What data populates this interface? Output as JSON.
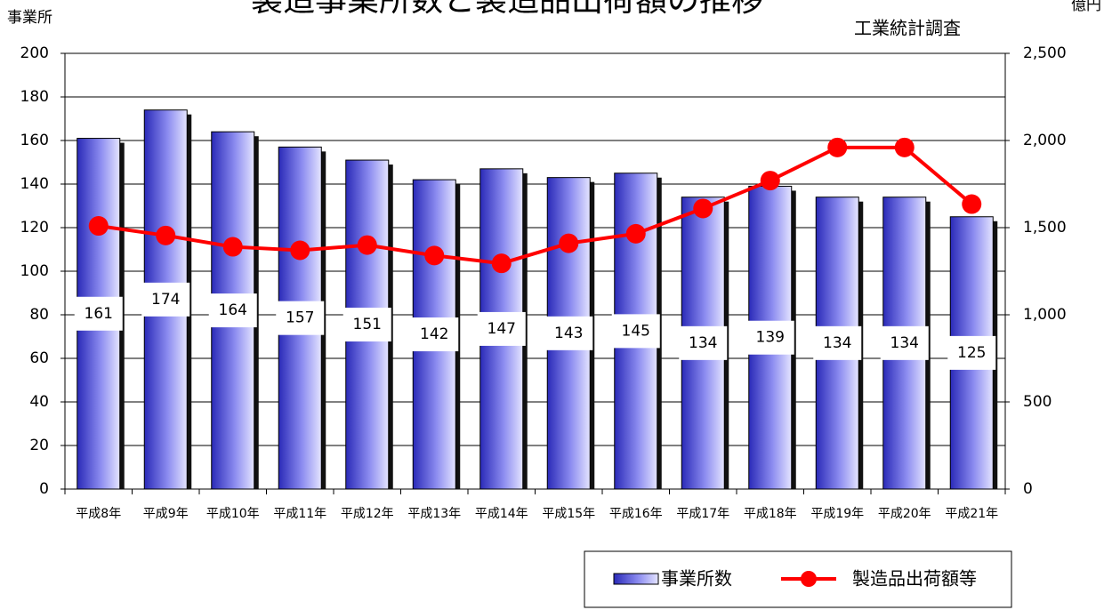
{
  "chart_data": {
    "type": "bar_line",
    "title": "製造事業所数と製造品出荷額の推移",
    "subtitle": "工業統計調査",
    "y_label": "事業所",
    "y2_label": "億円",
    "categories": [
      "平成8年",
      "平成9年",
      "平成10年",
      "平成11年",
      "平成12年",
      "平成13年",
      "平成14年",
      "平成15年",
      "平成16年",
      "平成17年",
      "平成18年",
      "平成19年",
      "平成20年",
      "平成21年"
    ],
    "series": [
      {
        "name": "事業所数",
        "type": "bar",
        "color": "#3333cc",
        "axis": "y",
        "values": [
          161,
          174,
          164,
          157,
          151,
          142,
          147,
          143,
          145,
          134,
          139,
          134,
          134,
          125
        ]
      },
      {
        "name": "製造品出荷額等",
        "type": "line",
        "color": "#ff0000",
        "axis": "y2",
        "values": [
          1510,
          1455,
          1390,
          1370,
          1400,
          1340,
          1295,
          1410,
          1465,
          1610,
          1770,
          1960,
          1960,
          1635
        ]
      }
    ],
    "ylim": [
      0,
      200
    ],
    "yticks": [
      0,
      20,
      40,
      60,
      80,
      100,
      120,
      140,
      160,
      180,
      200
    ],
    "y2lim": [
      0,
      2500
    ],
    "y2ticks": [
      0,
      500,
      {
        "value": 1000,
        "label": "1,000"
      },
      {
        "value": 1500,
        "label": "1,500"
      },
      {
        "value": 2000,
        "label": "2,000"
      },
      {
        "value": 2500,
        "label": "2,500"
      }
    ],
    "grid": true,
    "legend": "bottom-right"
  }
}
